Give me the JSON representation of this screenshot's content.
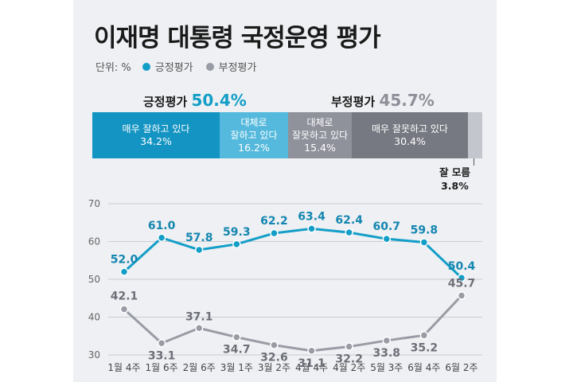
{
  "title": "이재명 대통령 국정운영 평가",
  "legend": {
    "unit": "단위: %",
    "positive": "긍정평가",
    "negative": "부정평가"
  },
  "summary": {
    "positive_label": "긍정평가",
    "positive_value": "50.4%",
    "negative_label": "부정평가",
    "negative_value": "45.7%"
  },
  "breakdown": [
    {
      "label": "매우 잘하고 있다",
      "pct": "34.2%"
    },
    {
      "label": "대체로 잘하고 있다",
      "line1": "대체로",
      "line2": "잘하고 있다",
      "pct": "16.2%"
    },
    {
      "label": "대체로 잘못하고 있다",
      "line1": "대체로",
      "line2": "잘못하고 있다",
      "pct": "15.4%"
    },
    {
      "label": "매우 잘못하고 있다",
      "pct": "30.4%"
    },
    {
      "label": "잘 모름",
      "pct": "3.8%"
    }
  ],
  "colors": {
    "positive": "#139ec7",
    "negative": "#9a9ca5"
  },
  "chart_data": {
    "type": "line",
    "categories": [
      "1월 4주",
      "1월 6주",
      "2월 6주",
      "3월 1주",
      "3월 2주",
      "4월 4주",
      "4월 2주",
      "5월 3주",
      "6월 4주",
      "6월 2주"
    ],
    "series": [
      {
        "name": "긍정평가",
        "values": [
          52.0,
          61.0,
          57.8,
          59.3,
          62.2,
          63.4,
          62.4,
          60.7,
          59.8,
          50.4
        ]
      },
      {
        "name": "부정평가",
        "values": [
          42.1,
          33.1,
          37.1,
          34.7,
          32.6,
          31.1,
          32.2,
          33.8,
          35.2,
          45.7
        ]
      }
    ],
    "yticks": [
      30,
      40,
      50,
      60,
      70
    ],
    "ylim": [
      30,
      70
    ],
    "grid": true
  }
}
